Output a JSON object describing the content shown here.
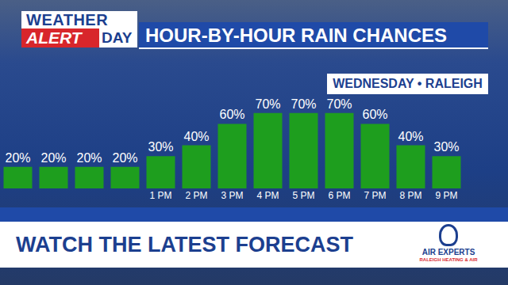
{
  "chart_data": {
    "type": "bar",
    "title": "HOUR-BY-HOUR RAIN CHANCES",
    "subtitle": "WEDNESDAY • RALEIGH",
    "categories": [
      null,
      null,
      null,
      null,
      "1 PM",
      "2 PM",
      "3 PM",
      "4 PM",
      "5 PM",
      "6 PM",
      "7 PM",
      "8 PM",
      "9 PM"
    ],
    "values": [
      20,
      20,
      20,
      20,
      30,
      40,
      60,
      70,
      70,
      70,
      60,
      40,
      30
    ],
    "value_labels": [
      "20%",
      "20%",
      "20%",
      "20%",
      "30%",
      "40%",
      "60%",
      "70%",
      "70%",
      "70%",
      "60%",
      "40%",
      "30%"
    ],
    "color": "#1e9e1e",
    "ylim": [
      0,
      100
    ],
    "yticks": [],
    "grid": false,
    "data_labels": true,
    "tick_labels": "x",
    "annotations": [
      "WEATHER",
      "ALERT",
      "DAY",
      "WATCH THE LATEST FORECAST",
      "AIR EXPERTS",
      "RALEIGH HEATING & AIR"
    ]
  }
}
